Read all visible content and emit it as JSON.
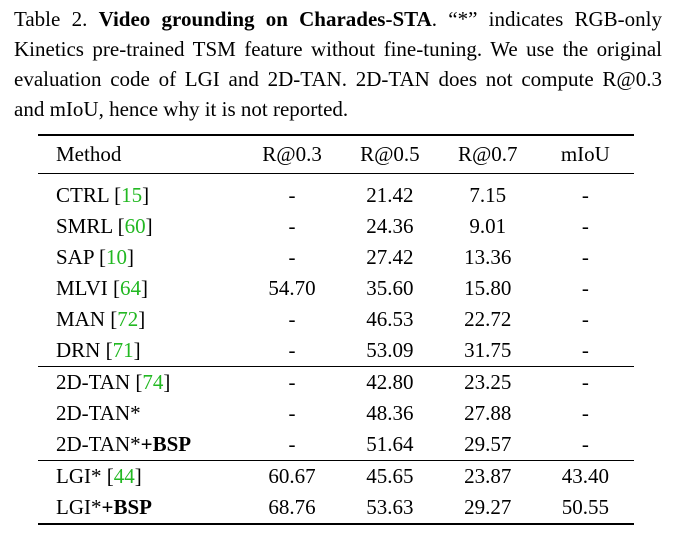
{
  "caption": {
    "label": "Table 2.",
    "title": "Video grounding on Charades-STA",
    "text": ". “*” indicates RGB-only Kinetics pre-trained TSM feature without fine-tuning. We use the original evaluation code of LGI and 2D-TAN. 2D-TAN does not compute R@0.3 and mIoU, hence why it is not reported."
  },
  "table": {
    "headers": [
      "Method",
      "R@0.3",
      "R@0.5",
      "R@0.7",
      "mIoU"
    ],
    "groups": [
      [
        {
          "method": "CTRL",
          "ref": "15",
          "suffix": "",
          "values": [
            "-",
            "21.42",
            "7.15",
            "-"
          ],
          "bold": []
        },
        {
          "method": "SMRL",
          "ref": "60",
          "suffix": "",
          "values": [
            "-",
            "24.36",
            "9.01",
            "-"
          ],
          "bold": []
        },
        {
          "method": "SAP",
          "ref": "10",
          "suffix": "",
          "values": [
            "-",
            "27.42",
            "13.36",
            "-"
          ],
          "bold": []
        },
        {
          "method": "MLVI",
          "ref": "64",
          "suffix": "",
          "values": [
            "54.70",
            "35.60",
            "15.80",
            "-"
          ],
          "bold": []
        },
        {
          "method": "MAN",
          "ref": "72",
          "suffix": "",
          "values": [
            "-",
            "46.53",
            "22.72",
            "-"
          ],
          "bold": []
        },
        {
          "method": "DRN",
          "ref": "71",
          "suffix": "",
          "values": [
            "-",
            "53.09",
            "31.75",
            "-"
          ],
          "bold": [
            2
          ]
        }
      ],
      [
        {
          "method": "2D-TAN",
          "ref": "74",
          "suffix": "",
          "values": [
            "-",
            "42.80",
            "23.25",
            "-"
          ],
          "bold": []
        },
        {
          "method": "2D-TAN*",
          "ref": "",
          "suffix": "",
          "values": [
            "-",
            "48.36",
            "27.88",
            "-"
          ],
          "bold": []
        },
        {
          "method": "2D-TAN*",
          "ref": "",
          "suffix": "+BSP",
          "values": [
            "-",
            "51.64",
            "29.57",
            "-"
          ],
          "bold": []
        }
      ],
      [
        {
          "method": "LGI*",
          "ref": "44",
          "suffix": "",
          "values": [
            "60.67",
            "45.65",
            "23.87",
            "43.40"
          ],
          "bold": []
        },
        {
          "method": "LGI*",
          "ref": "",
          "suffix": "+BSP",
          "values": [
            "68.76",
            "53.63",
            "29.27",
            "50.55"
          ],
          "bold": [
            0,
            1,
            3
          ]
        }
      ]
    ]
  }
}
